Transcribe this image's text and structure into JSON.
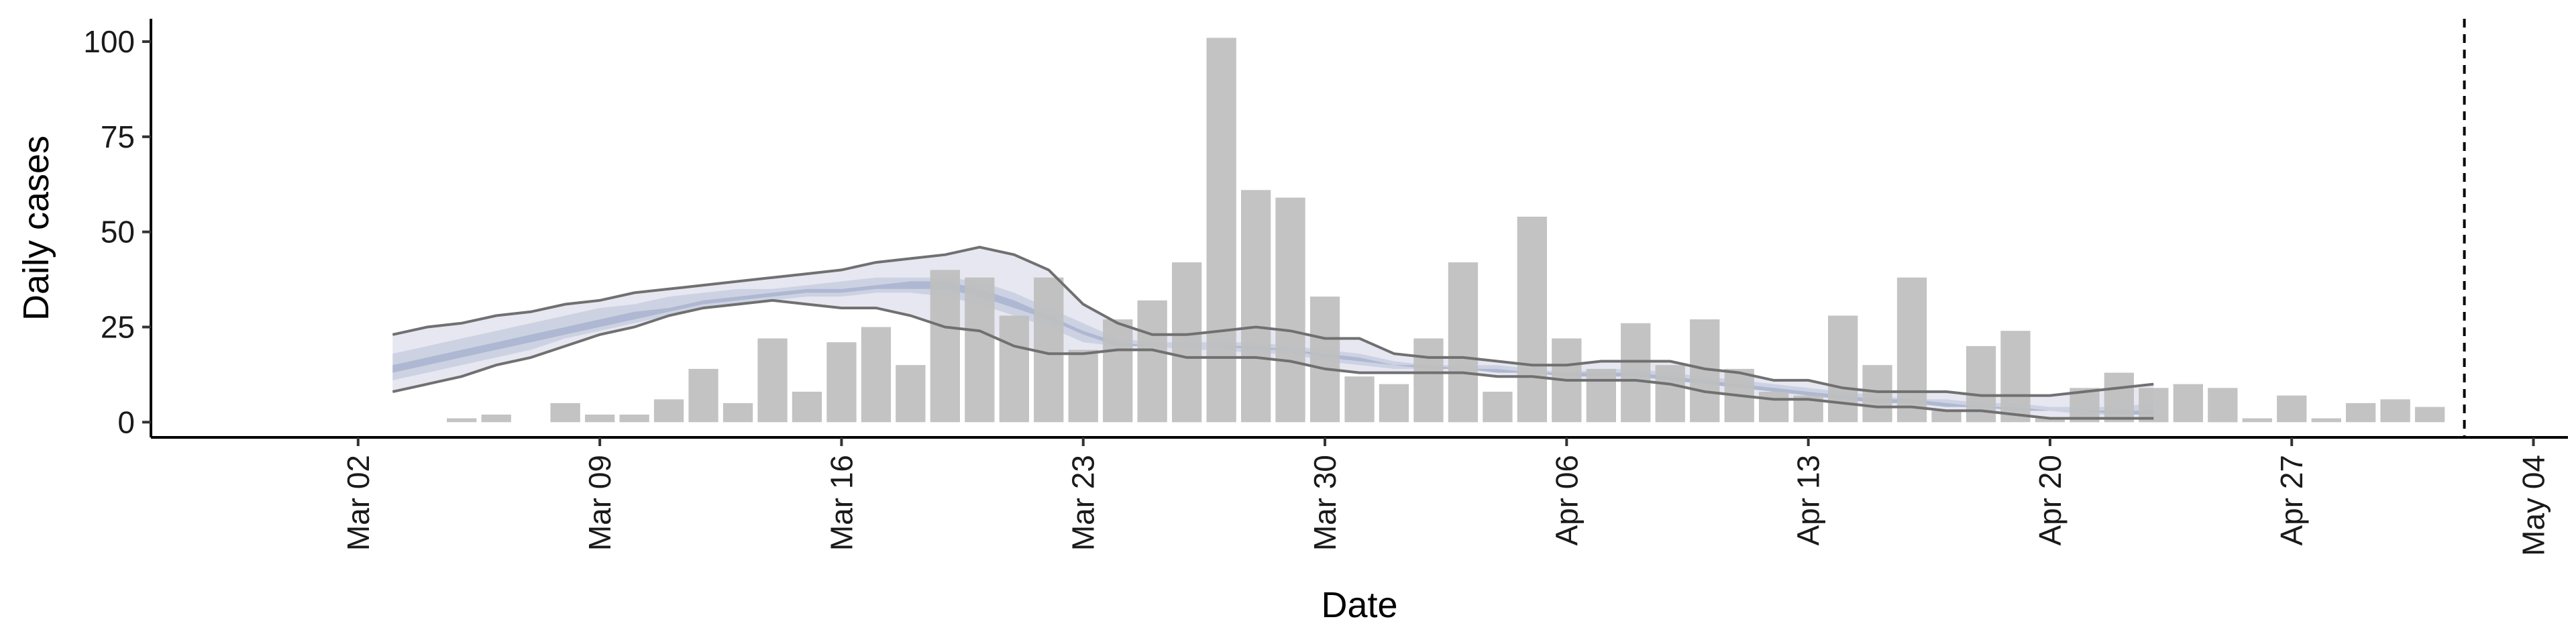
{
  "chart_data": {
    "type": "bar",
    "xlabel": "Date",
    "ylabel": "Daily cases",
    "ylim": [
      -4,
      106
    ],
    "y_ticks": [
      0,
      25,
      50,
      75,
      100
    ],
    "x_range": [
      "2020-02-25",
      "2020-05-05"
    ],
    "x_ticks": [
      {
        "date": "2020-03-02",
        "label": "Mar 02"
      },
      {
        "date": "2020-03-09",
        "label": "Mar 09"
      },
      {
        "date": "2020-03-16",
        "label": "Mar 16"
      },
      {
        "date": "2020-03-23",
        "label": "Mar 23"
      },
      {
        "date": "2020-03-30",
        "label": "Mar 30"
      },
      {
        "date": "2020-04-06",
        "label": "Apr 06"
      },
      {
        "date": "2020-04-13",
        "label": "Apr 13"
      },
      {
        "date": "2020-04-20",
        "label": "Apr 20"
      },
      {
        "date": "2020-04-27",
        "label": "Apr 27"
      },
      {
        "date": "2020-05-04",
        "label": "May 04"
      }
    ],
    "grid": false,
    "legend": "none",
    "colors": {
      "bars": "#bebebe",
      "band_outer": "#e6e7f0",
      "band_mid": "#cdd2e3",
      "band_inner": "#aeb8d2",
      "bound_lines": "#707070",
      "reference_line": "#000000"
    },
    "bars": {
      "dates": [
        "2020-03-05",
        "2020-03-06",
        "2020-03-08",
        "2020-03-09",
        "2020-03-10",
        "2020-03-11",
        "2020-03-12",
        "2020-03-13",
        "2020-03-14",
        "2020-03-15",
        "2020-03-16",
        "2020-03-17",
        "2020-03-18",
        "2020-03-19",
        "2020-03-20",
        "2020-03-21",
        "2020-03-22",
        "2020-03-23",
        "2020-03-24",
        "2020-03-25",
        "2020-03-26",
        "2020-03-27",
        "2020-03-28",
        "2020-03-29",
        "2020-03-30",
        "2020-03-31",
        "2020-04-01",
        "2020-04-02",
        "2020-04-03",
        "2020-04-04",
        "2020-04-05",
        "2020-04-06",
        "2020-04-07",
        "2020-04-08",
        "2020-04-09",
        "2020-04-10",
        "2020-04-11",
        "2020-04-12",
        "2020-04-13",
        "2020-04-14",
        "2020-04-15",
        "2020-04-16",
        "2020-04-17",
        "2020-04-18",
        "2020-04-19",
        "2020-04-20",
        "2020-04-21",
        "2020-04-22",
        "2020-04-23",
        "2020-04-24",
        "2020-04-25",
        "2020-04-26",
        "2020-04-27",
        "2020-04-28",
        "2020-04-29",
        "2020-04-30",
        "2020-05-01"
      ],
      "values": [
        1,
        2,
        5,
        2,
        2,
        6,
        14,
        5,
        22,
        8,
        21,
        25,
        15,
        40,
        38,
        28,
        38,
        19,
        27,
        32,
        42,
        101,
        61,
        59,
        33,
        12,
        10,
        22,
        42,
        8,
        54,
        22,
        14,
        26,
        15,
        27,
        14,
        8,
        7,
        28,
        15,
        38,
        3,
        20,
        24,
        1,
        9,
        13,
        9,
        10,
        9,
        1,
        7,
        1,
        5,
        6,
        4
      ]
    },
    "bands": {
      "dates": [
        "2020-03-03",
        "2020-03-04",
        "2020-03-05",
        "2020-03-06",
        "2020-03-07",
        "2020-03-08",
        "2020-03-09",
        "2020-03-10",
        "2020-03-11",
        "2020-03-12",
        "2020-03-13",
        "2020-03-14",
        "2020-03-15",
        "2020-03-16",
        "2020-03-17",
        "2020-03-18",
        "2020-03-19",
        "2020-03-20",
        "2020-03-21",
        "2020-03-22",
        "2020-03-23",
        "2020-03-24",
        "2020-03-25",
        "2020-03-26",
        "2020-03-27",
        "2020-03-28",
        "2020-03-29",
        "2020-03-30",
        "2020-03-31",
        "2020-04-01",
        "2020-04-02",
        "2020-04-03",
        "2020-04-04",
        "2020-04-05",
        "2020-04-06",
        "2020-04-07",
        "2020-04-08",
        "2020-04-09",
        "2020-04-10",
        "2020-04-11",
        "2020-04-12",
        "2020-04-13",
        "2020-04-14",
        "2020-04-15",
        "2020-04-16",
        "2020-04-17",
        "2020-04-18",
        "2020-04-19",
        "2020-04-20",
        "2020-04-21",
        "2020-04-22",
        "2020-04-23"
      ],
      "upper": [
        23,
        25,
        26,
        28,
        29,
        31,
        32,
        34,
        35,
        36,
        37,
        38,
        39,
        40,
        42,
        43,
        44,
        46,
        44,
        40,
        31,
        26,
        23,
        23,
        24,
        25,
        24,
        22,
        22,
        18,
        17,
        17,
        16,
        15,
        15,
        16,
        16,
        16,
        14,
        13,
        11,
        11,
        9,
        8,
        8,
        8,
        7,
        7,
        7,
        8,
        9,
        10
      ],
      "lower": [
        8,
        10,
        12,
        15,
        17,
        20,
        23,
        25,
        28,
        30,
        31,
        32,
        31,
        30,
        30,
        28,
        25,
        24,
        20,
        18,
        18,
        19,
        19,
        17,
        17,
        17,
        16,
        14,
        13,
        13,
        13,
        13,
        12,
        12,
        11,
        11,
        11,
        10,
        8,
        7,
        6,
        6,
        5,
        4,
        4,
        3,
        3,
        2,
        1,
        1,
        1,
        1
      ],
      "mid_hi": [
        18,
        20,
        22,
        24,
        26,
        28,
        30,
        31,
        33,
        34,
        35,
        35,
        36,
        37,
        38,
        38,
        38,
        37,
        34,
        30,
        26,
        22,
        21,
        21,
        21,
        21,
        20,
        19,
        18,
        16,
        15,
        15,
        15,
        14,
        13,
        14,
        14,
        13,
        12,
        11,
        10,
        9,
        8,
        7,
        6,
        6,
        5,
        5,
        4,
        4,
        4,
        5
      ],
      "mid_lo": [
        11,
        13,
        15,
        17,
        19,
        22,
        24,
        26,
        28,
        30,
        31,
        32,
        33,
        33,
        34,
        34,
        33,
        31,
        28,
        25,
        21,
        20,
        20,
        19,
        19,
        18,
        18,
        16,
        15,
        14,
        14,
        14,
        13,
        13,
        12,
        12,
        12,
        11,
        10,
        9,
        8,
        7,
        6,
        5,
        5,
        4,
        4,
        3,
        3,
        2,
        2,
        2
      ],
      "inner_hi": [
        15,
        17,
        19,
        21,
        23,
        25,
        27,
        29,
        30,
        32,
        33,
        34,
        35,
        35,
        36,
        37,
        37,
        35,
        32,
        28,
        24,
        21,
        20,
        20,
        20,
        20,
        19,
        18,
        17,
        15,
        15,
        14,
        14,
        13,
        13,
        13,
        13,
        12,
        11,
        10,
        9,
        8,
        7,
        6,
        6,
        5,
        4,
        4,
        3,
        3,
        3,
        3
      ],
      "inner_lo": [
        13,
        15,
        17,
        19,
        21,
        23,
        25,
        27,
        29,
        31,
        32,
        33,
        34,
        34,
        35,
        35,
        35,
        33,
        30,
        27,
        23,
        20,
        20,
        20,
        20,
        19,
        19,
        17,
        16,
        15,
        14,
        14,
        13,
        13,
        12,
        12,
        12,
        11,
        10,
        9,
        8,
        7,
        6,
        5,
        5,
        4,
        4,
        3,
        3,
        3,
        2,
        2
      ]
    },
    "reference_line_date": "2020-05-02"
  }
}
